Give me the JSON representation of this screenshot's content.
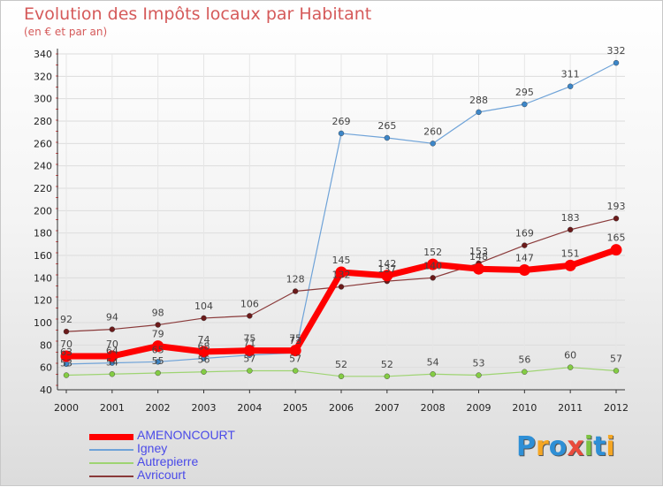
{
  "chart_data": {
    "type": "line",
    "title": "Evolution des Impôts locaux par Habitant",
    "subtitle": "(en € et par an)",
    "xlabel": "",
    "ylabel": "",
    "ylim": [
      40,
      340
    ],
    "yticks": [
      40,
      60,
      80,
      100,
      120,
      140,
      160,
      180,
      200,
      220,
      240,
      260,
      280,
      300,
      320,
      340
    ],
    "categories": [
      "2000",
      "2001",
      "2002",
      "2003",
      "2004",
      "2005",
      "2006",
      "2007",
      "2008",
      "2009",
      "2010",
      "2011",
      "2012"
    ],
    "series": [
      {
        "name": "AMENONCOURT",
        "color": "#ff0000",
        "bold": true,
        "values": [
          70,
          70,
          79,
          74,
          75,
          75,
          145,
          142,
          152,
          148,
          147,
          151,
          165
        ]
      },
      {
        "name": "Igney",
        "color": "#6fa3d8",
        "marker": "#3c86c8",
        "values": [
          63,
          64,
          65,
          68,
          71,
          73,
          269,
          265,
          260,
          288,
          295,
          311,
          332
        ]
      },
      {
        "name": "Autrepierre",
        "color": "#9ed472",
        "marker": "#84cc44",
        "values": [
          53,
          54,
          55,
          56,
          57,
          57,
          52,
          52,
          54,
          53,
          56,
          60,
          57
        ]
      },
      {
        "name": "Avricourt",
        "color": "#8a3a3a",
        "marker": "#6b1a1a",
        "values": [
          92,
          94,
          98,
          104,
          106,
          128,
          132,
          137,
          140,
          153,
          169,
          183,
          193
        ]
      }
    ]
  },
  "logo": {
    "letters": [
      "P",
      "r",
      "o",
      "x",
      "i",
      "t",
      "i"
    ],
    "colors": [
      "#2e8fd6",
      "#f5a623",
      "#2e8fd6",
      "#e94b3c",
      "#7cc242",
      "#2e8fd6",
      "#f5a623"
    ]
  }
}
